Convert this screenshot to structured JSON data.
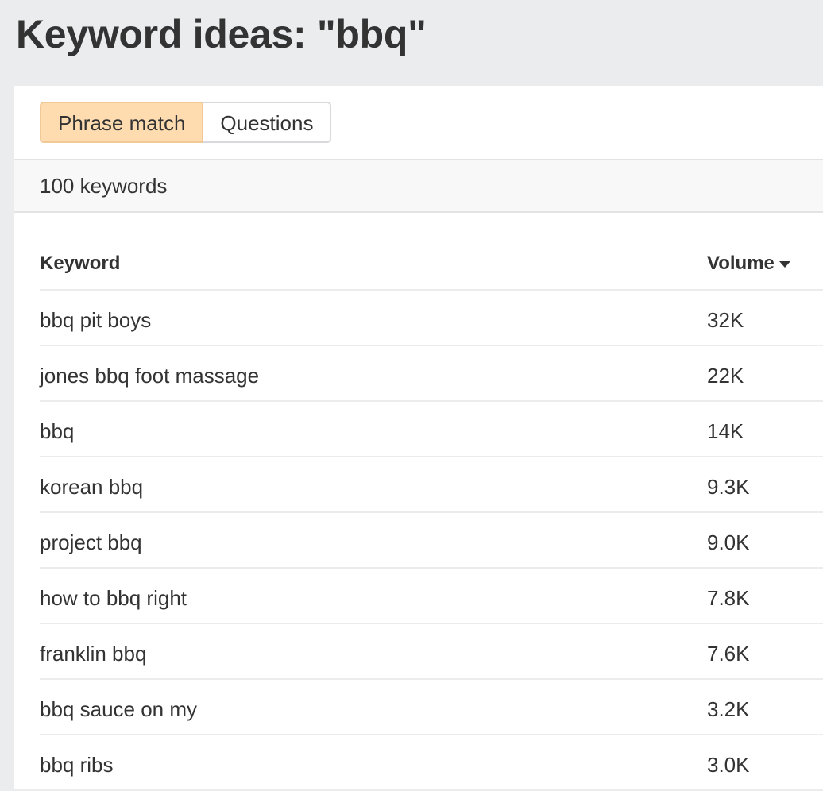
{
  "title": "Keyword ideas: \"bbq\"",
  "tabs": [
    {
      "label": "Phrase match",
      "active": true
    },
    {
      "label": "Questions",
      "active": false
    }
  ],
  "count_label": "100 keywords",
  "columns": {
    "keyword": "Keyword",
    "volume": "Volume",
    "sort": "descending"
  },
  "colors": {
    "active_tab": "#fedcb0",
    "background": "#ebecee"
  },
  "rows": [
    {
      "keyword": "bbq pit boys",
      "volume": "32K"
    },
    {
      "keyword": "jones bbq foot massage",
      "volume": "22K"
    },
    {
      "keyword": "bbq",
      "volume": "14K"
    },
    {
      "keyword": "korean bbq",
      "volume": "9.3K"
    },
    {
      "keyword": "project bbq",
      "volume": "9.0K"
    },
    {
      "keyword": "how to bbq right",
      "volume": "7.8K"
    },
    {
      "keyword": "franklin bbq",
      "volume": "7.6K"
    },
    {
      "keyword": "bbq sauce on my",
      "volume": "3.2K"
    },
    {
      "keyword": "bbq ribs",
      "volume": "3.0K"
    }
  ]
}
